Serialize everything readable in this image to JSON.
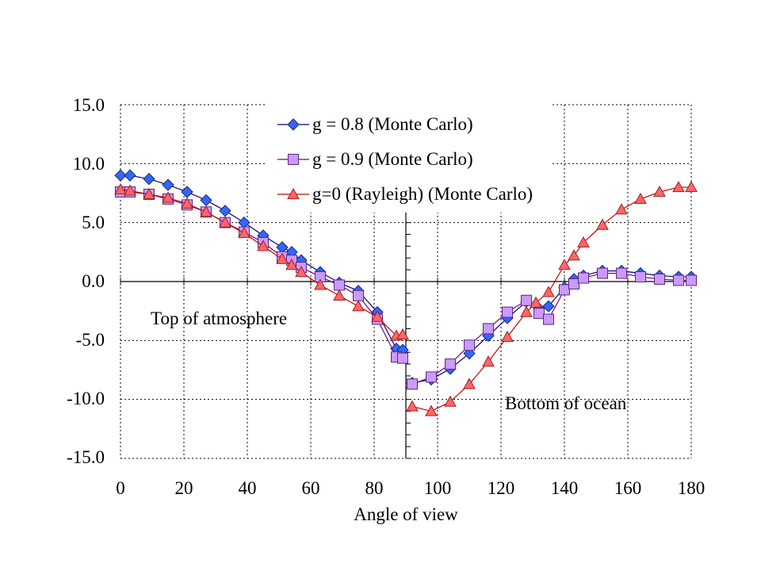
{
  "chart_data": {
    "type": "scatter",
    "title": "",
    "xlabel": "Angle of view",
    "ylabel": "",
    "xlim": [
      0,
      180
    ],
    "ylim": [
      -15,
      15
    ],
    "x_ticks": [
      0,
      20,
      40,
      60,
      80,
      100,
      120,
      140,
      160,
      180
    ],
    "y_ticks": [
      15,
      10,
      5,
      0,
      -5,
      -10,
      -15
    ],
    "x_tick_labels": [
      "0",
      "20",
      "40",
      "60",
      "80",
      "100",
      "120",
      "140",
      "160",
      "180"
    ],
    "y_tick_labels": [
      "15.0",
      "10.0",
      "5.0",
      "0.0",
      "-5.0",
      "-10.0",
      "-15.0"
    ],
    "grid": "dotted",
    "legend_position": "top-center",
    "annotations": [
      "Top of atmosphere",
      "Bottom of ocean"
    ],
    "series": [
      {
        "name": "g = 0.8 (Monte Carlo)",
        "color": "#3366ff",
        "marker": "diamond",
        "segments": [
          {
            "x": [
              0,
              3,
              9,
              15,
              21,
              27,
              33,
              39,
              45,
              51,
              54,
              57,
              63,
              69,
              75,
              81,
              87,
              89
            ],
            "y": [
              9.0,
              9.0,
              8.7,
              8.2,
              7.6,
              6.9,
              6.0,
              5.0,
              3.9,
              2.9,
              2.5,
              1.8,
              0.8,
              -0.1,
              -0.8,
              -2.6,
              -5.7,
              -5.8
            ]
          },
          {
            "x": [
              92,
              98,
              104,
              110,
              116,
              122,
              128,
              132,
              135,
              140,
              143,
              146,
              152,
              158,
              164,
              170,
              176,
              180
            ],
            "y": [
              -8.6,
              -8.3,
              -7.4,
              -6.1,
              -4.6,
              -3.1,
              -1.7,
              -2.3,
              -2.1,
              -0.5,
              0.2,
              0.5,
              0.9,
              0.9,
              0.7,
              0.5,
              0.4,
              0.4
            ]
          }
        ]
      },
      {
        "name": "g = 0.9 (Monte Carlo)",
        "color": "#cc99ff",
        "marker": "square",
        "segments": [
          {
            "x": [
              0,
              3,
              9,
              15,
              21,
              27,
              33,
              39,
              45,
              51,
              54,
              57,
              63,
              69,
              75,
              81,
              87,
              89
            ],
            "y": [
              7.6,
              7.6,
              7.4,
              7.0,
              6.5,
              5.9,
              5.0,
              4.2,
              3.3,
              2.1,
              1.8,
              1.2,
              0.4,
              -0.3,
              -1.2,
              -3.2,
              -6.4,
              -6.5
            ]
          },
          {
            "x": [
              92,
              98,
              104,
              110,
              116,
              122,
              128,
              132,
              135,
              140,
              143,
              146,
              152,
              158,
              164,
              170,
              176,
              180
            ],
            "y": [
              -8.7,
              -8.1,
              -7.0,
              -5.4,
              -4.0,
              -2.6,
              -1.6,
              -2.7,
              -3.2,
              -0.7,
              -0.2,
              0.3,
              0.7,
              0.7,
              0.4,
              0.2,
              0.1,
              0.1
            ]
          }
        ]
      },
      {
        "name": "g=0 (Rayleigh) (Monte Carlo)",
        "color": "#ff6666",
        "marker": "triangle",
        "segments": [
          {
            "x": [
              0,
              3,
              9,
              15,
              21,
              27,
              33,
              39,
              45,
              51,
              54,
              57,
              63,
              69,
              75,
              81,
              87,
              89
            ],
            "y": [
              7.8,
              7.7,
              7.4,
              7.1,
              6.6,
              5.9,
              5.0,
              4.1,
              3.0,
              1.9,
              1.4,
              0.8,
              -0.3,
              -1.2,
              -2.1,
              -3.0,
              -4.6,
              -4.5
            ]
          },
          {
            "x": [
              92,
              98,
              104,
              110,
              116,
              122,
              128,
              131,
              135,
              140,
              143,
              146,
              152,
              158,
              164,
              170,
              176,
              180
            ],
            "y": [
              -10.6,
              -11.0,
              -10.2,
              -8.7,
              -6.8,
              -4.7,
              -2.6,
              -1.8,
              -0.9,
              1.4,
              2.2,
              3.3,
              4.8,
              6.1,
              7.0,
              7.6,
              8.0,
              8.0
            ]
          }
        ]
      }
    ]
  }
}
